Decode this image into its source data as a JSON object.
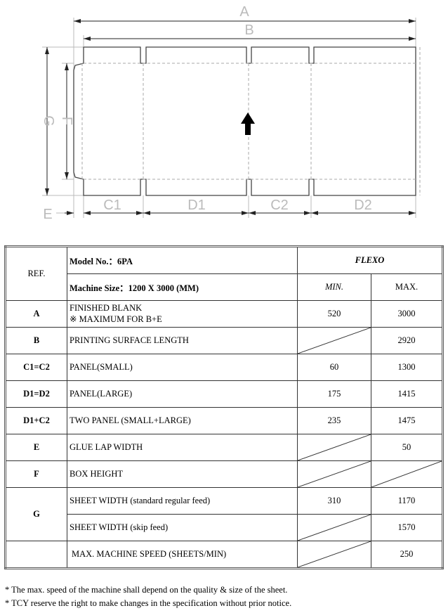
{
  "diagram": {
    "labels": {
      "A": "A",
      "B": "B",
      "C1": "C1",
      "D1": "D1",
      "C2": "C2",
      "D2": "D2",
      "E": "E",
      "F": "F",
      "G": "G"
    },
    "arrow_icon": "up-arrow-feed-direction"
  },
  "table": {
    "ref_header": "REF.",
    "model": "Model No.：6PA",
    "machine_size": "Machine Size：1200 X 3000 (MM)",
    "process": "FLEXO",
    "min_header": "MIN.",
    "max_header": "MAX.",
    "rows": [
      {
        "ref": "A",
        "desc": "FINISHED BLANK",
        "desc2": "※  MAXIMUM FOR B+E",
        "min": "520",
        "max": "3000"
      },
      {
        "ref": "B",
        "desc": "PRINTING SURFACE LENGTH",
        "min": null,
        "max": "2920"
      },
      {
        "ref": "C1=C2",
        "desc": "PANEL(SMALL)",
        "min": "60",
        "max": "1300"
      },
      {
        "ref": "D1=D2",
        "desc": "PANEL(LARGE)",
        "min": "175",
        "max": "1415"
      },
      {
        "ref": "D1+C2",
        "desc": "TWO PANEL (SMALL+LARGE)",
        "min": "235",
        "max": "1475"
      },
      {
        "ref": "E",
        "desc": "GLUE LAP WIDTH",
        "min": null,
        "max": "50"
      },
      {
        "ref": "F",
        "desc": "BOX HEIGHT",
        "min": null,
        "max": null
      },
      {
        "ref": "G",
        "desc": "SHEET WIDTH (standard regular feed)",
        "min": "310",
        "max": "1170"
      },
      {
        "ref": "",
        "desc": "SHEET WIDTH    (skip feed)",
        "min": null,
        "max": "1570"
      },
      {
        "ref": "",
        "desc": "MAX. MACHINE SPEED (SHEETS/MIN)",
        "min": null,
        "max": "250"
      }
    ]
  },
  "notes": [
    "* The max. speed of the machine shall depend on the quality & size of the sheet.",
    "* TCY reserve the right to make changes in the specification without prior notice."
  ]
}
